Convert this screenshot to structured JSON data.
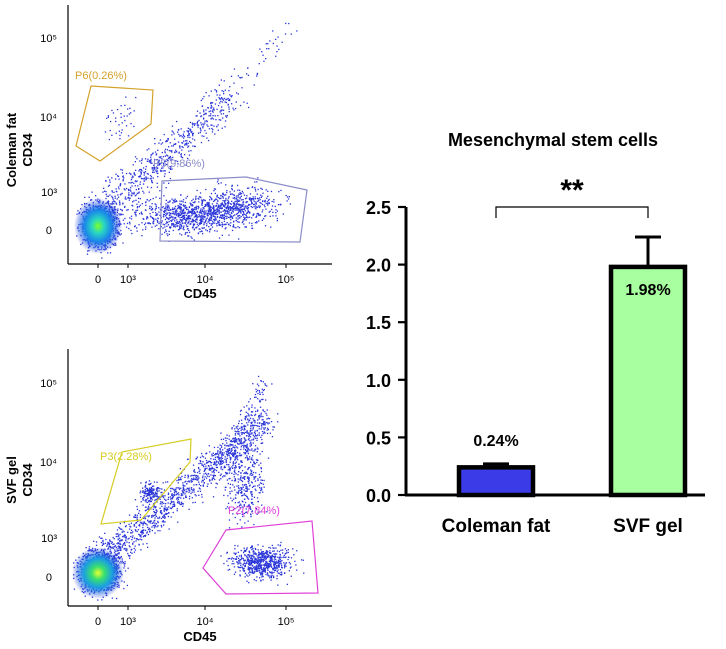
{
  "chart_data": [
    {
      "type": "scatter",
      "panel": "flow-top",
      "ylabel_line1": "Coleman fat",
      "ylabel_line2": "CD34",
      "xlabel": "CD45",
      "x_ticks": [
        "0",
        "10³",
        "10⁴",
        "10⁵"
      ],
      "y_ticks": [
        "0",
        "10³",
        "10⁴",
        "10⁵"
      ],
      "gates": [
        {
          "name": "P6",
          "label": "P6(0.26%)",
          "percent": 0.26,
          "color": "#D4A22A"
        },
        {
          "name": "P5",
          "label": "P5(9.86%)",
          "percent": 9.86,
          "color": "#8C8CC8"
        }
      ]
    },
    {
      "type": "scatter",
      "panel": "flow-bottom",
      "ylabel_line1": "SVF gel",
      "ylabel_line2": "CD34",
      "xlabel": "CD45",
      "x_ticks": [
        "0",
        "10³",
        "10⁴",
        "10⁵"
      ],
      "y_ticks": [
        "0",
        "10³",
        "10⁴",
        "10⁵"
      ],
      "gates": [
        {
          "name": "P3",
          "label": "P3(2.28%)",
          "percent": 2.28,
          "color": "#D6CC22"
        },
        {
          "name": "P2",
          "label": "P2(7.84%)",
          "percent": 7.84,
          "color": "#E040D8"
        }
      ]
    },
    {
      "type": "bar",
      "title": "Mesenchymal stem cells",
      "categories": [
        "Coleman fat",
        "SVF gel"
      ],
      "values": [
        0.24,
        1.98
      ],
      "errors": [
        0.03,
        0.26
      ],
      "value_labels": [
        "0.24%",
        "1.98%"
      ],
      "colors": [
        "#3B3BE8",
        "#A8FFA0"
      ],
      "ylim": [
        0,
        2.5
      ],
      "y_ticks": [
        "0.0",
        "0.5",
        "1.0",
        "1.5",
        "2.0",
        "2.5"
      ],
      "significance": "**",
      "xlabel": "",
      "ylabel": ""
    }
  ]
}
